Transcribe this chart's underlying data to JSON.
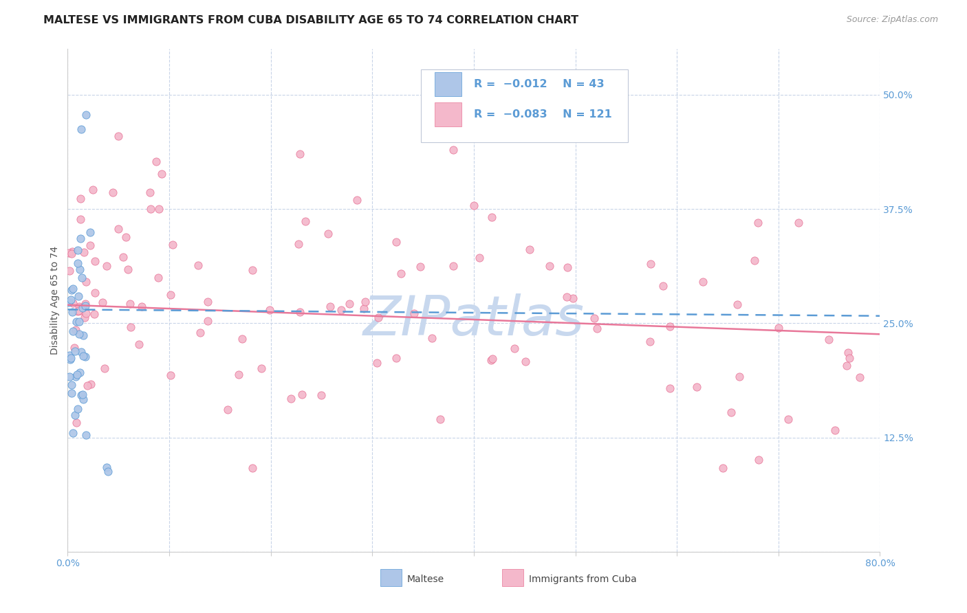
{
  "title": "MALTESE VS IMMIGRANTS FROM CUBA DISABILITY AGE 65 TO 74 CORRELATION CHART",
  "source": "Source: ZipAtlas.com",
  "ylabel": "Disability Age 65 to 74",
  "xlim": [
    0.0,
    0.8
  ],
  "ylim": [
    0.0,
    0.55
  ],
  "xticks": [
    0.0,
    0.1,
    0.2,
    0.3,
    0.4,
    0.5,
    0.6,
    0.7,
    0.8
  ],
  "xticklabels": [
    "0.0%",
    "",
    "",
    "",
    "",
    "",
    "",
    "",
    "80.0%"
  ],
  "yticks": [
    0.0,
    0.125,
    0.25,
    0.375,
    0.5
  ],
  "yticklabels": [
    "",
    "12.5%",
    "25.0%",
    "37.5%",
    "50.0%"
  ],
  "maltese_fill_color": "#aec6e8",
  "maltese_edge_color": "#5b9bd5",
  "cuba_fill_color": "#f4b8cb",
  "cuba_edge_color": "#e87799",
  "maltese_trend_color": "#5b9bd5",
  "cuba_trend_color": "#e87799",
  "legend_r_maltese": "R = −0.012",
  "legend_n_maltese": "N = 43",
  "legend_r_cuba": "R = −0.083",
  "legend_n_cuba": "N = 121",
  "legend_label_maltese": "Maltese",
  "legend_label_cuba": "Immigrants from Cuba",
  "watermark": "ZIPatlas",
  "background_color": "#ffffff",
  "grid_color": "#c8d4e8",
  "title_color": "#222222",
  "title_fontsize": 11.5,
  "axis_label_color": "#555555",
  "tick_color": "#5b9bd5",
  "tick_fontsize": 10,
  "source_fontsize": 9,
  "watermark_color": "#c8d8ee",
  "watermark_fontsize": 58,
  "maltese_trend_start_y": 0.265,
  "maltese_trend_end_y": 0.258,
  "cuba_trend_start_y": 0.27,
  "cuba_trend_end_y": 0.238
}
